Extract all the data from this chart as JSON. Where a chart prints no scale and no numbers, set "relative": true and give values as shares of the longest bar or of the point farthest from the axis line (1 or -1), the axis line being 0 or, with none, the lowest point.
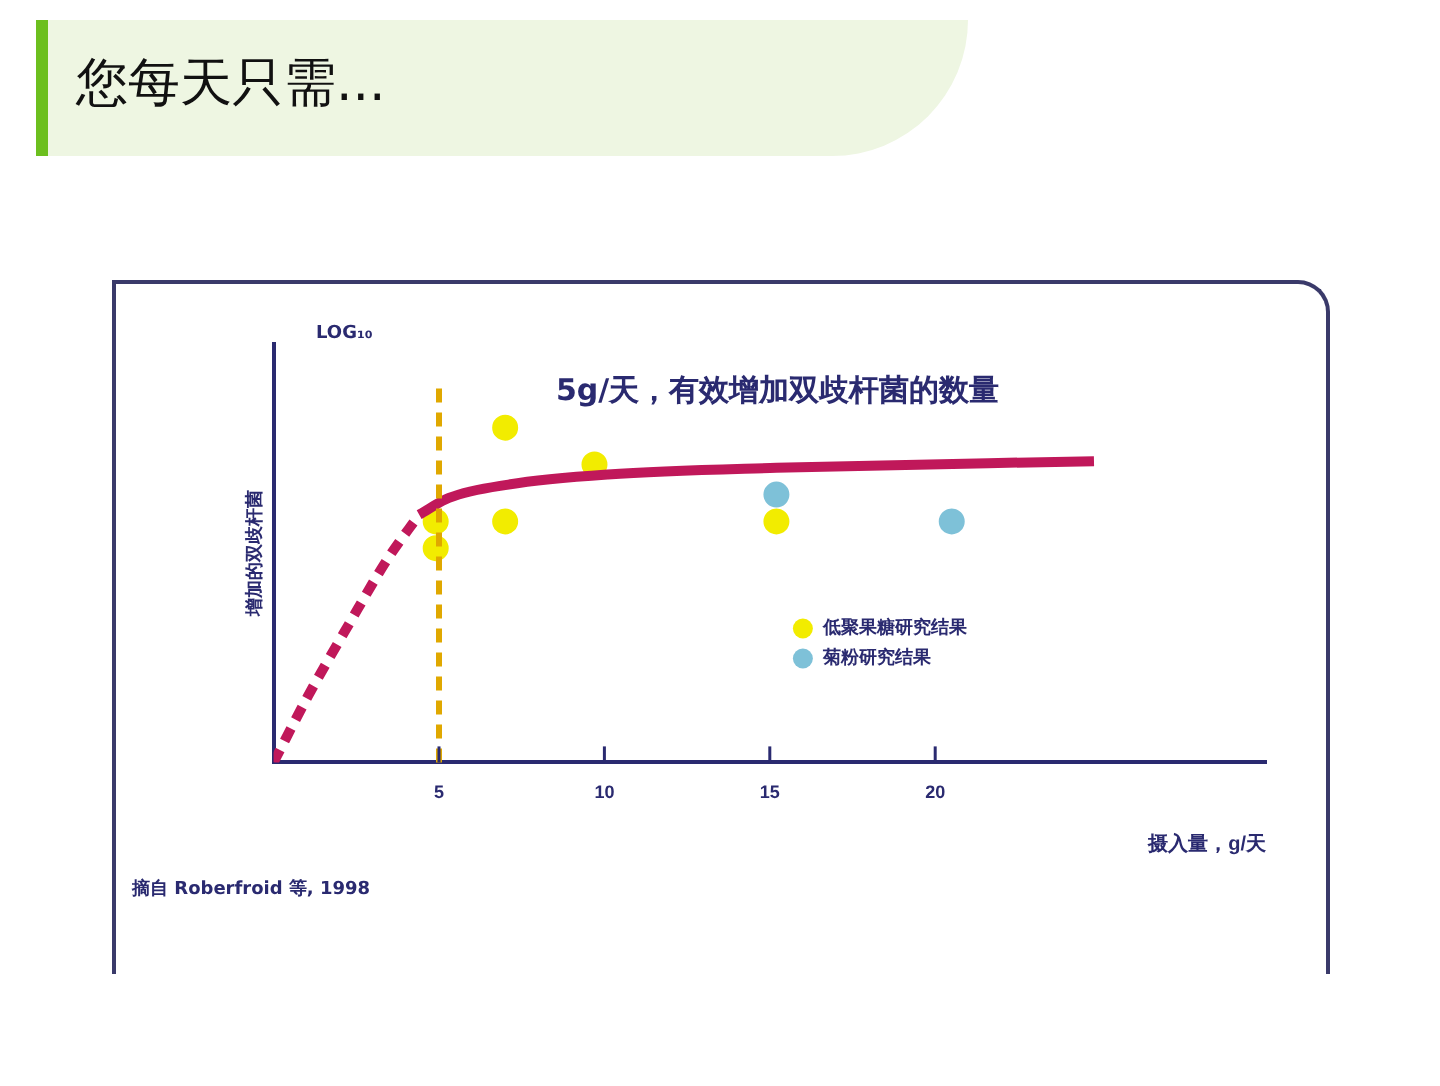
{
  "chart_data": {
    "type": "scatter",
    "title": "您每天只需...",
    "subtitle": "5g/天，有效增加双歧杆菌的数量",
    "xlabel": "摄入量，g/天",
    "ylabel": "增加的双歧杆菌",
    "annotations": [
      "LOG₁₀",
      "摘自 Roberfroid 等, 1998"
    ],
    "relative": true,
    "xlim": [
      0,
      30
    ],
    "xticks": [
      5,
      10,
      15,
      20
    ],
    "grid": false,
    "legend": "right",
    "series": [
      {
        "type": "line",
        "line_style": "dashed",
        "marker": "none",
        "color": "#c0185a",
        "x": [
          0,
          1.05,
          2.26,
          3.46,
          4.4
        ],
        "values": [
          0,
          0.2,
          0.41,
          0.61,
          0.74
        ]
      },
      {
        "type": "line",
        "line_style": "solid",
        "marker": "none",
        "color": "#c0185a",
        "x": [
          4.4,
          5.3,
          7.1,
          10.1,
          15.2,
          24.8
        ],
        "values": [
          0.74,
          0.79,
          0.83,
          0.86,
          0.88,
          0.9
        ]
      },
      {
        "name": "低聚果糖研究结果",
        "marker": "circle",
        "color": "#f2ec00",
        "x": [
          7,
          9.7,
          4.9,
          7,
          15.2,
          4.9
        ],
        "values": [
          1,
          0.89,
          0.72,
          0.72,
          0.72,
          0.64
        ]
      },
      {
        "name": "菊粉研究结果",
        "marker": "circle",
        "color": "#7ec1d8",
        "x": [
          15.2,
          20.5
        ],
        "values": [
          0.8,
          0.72
        ]
      }
    ],
    "ref_lines": [
      {
        "axis": "x",
        "value": 5,
        "color": "#e0a800",
        "line_style": "dashed"
      }
    ]
  }
}
